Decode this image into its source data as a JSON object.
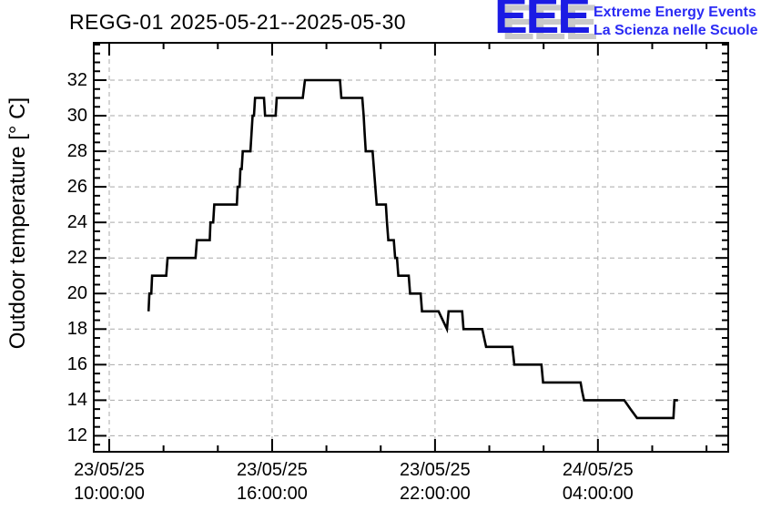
{
  "header": {
    "title": "REGG-01 2025-05-21--2025-05-30",
    "logo": {
      "acronym": "EEE",
      "line1": "Extreme Energy Events",
      "line2": "La Scienza nelle Scuole",
      "blue_color": "#1b1be4",
      "text_color": "#2b2bf4",
      "shadow_color": "#c9c9c9"
    }
  },
  "chart_data": {
    "type": "line",
    "style": "stepped polyline (ROOT TGraph style)",
    "title": "REGG-01 2025-05-21--2025-05-30",
    "xlabel": "",
    "ylabel": "Outdoor temperature [° C]",
    "x_unit": "hours since 2025-05-23 00:00:00",
    "xlim": [
      9.43,
      32.8
    ],
    "ylim": [
      11.1,
      34.1
    ],
    "grid": "dashed gray grid at major ticks",
    "legend": "none",
    "line_color": "#000000",
    "grid_color": "#a9a9a9",
    "frame_color": "#000000",
    "x_major_ticks": [
      {
        "value": 10,
        "date": "23/05/25",
        "time": "10:00:00"
      },
      {
        "value": 16,
        "date": "23/05/25",
        "time": "16:00:00"
      },
      {
        "value": 22,
        "date": "23/05/25",
        "time": "22:00:00"
      },
      {
        "value": 28,
        "date": "24/05/25",
        "time": "04:00:00"
      }
    ],
    "x_minor_tick_values": [
      12,
      14,
      18,
      20,
      24,
      26,
      30,
      32
    ],
    "y_major_ticks": [
      12,
      14,
      16,
      18,
      20,
      22,
      24,
      26,
      28,
      30,
      32
    ],
    "y_minor_step": 0.5,
    "series": [
      {
        "name": "outdoor-temperature",
        "points": [
          [
            11.45,
            19
          ],
          [
            11.48,
            20
          ],
          [
            11.55,
            20
          ],
          [
            11.58,
            21
          ],
          [
            12.1,
            21
          ],
          [
            12.15,
            22
          ],
          [
            13.18,
            22
          ],
          [
            13.23,
            23
          ],
          [
            13.7,
            23
          ],
          [
            13.73,
            24
          ],
          [
            13.83,
            24
          ],
          [
            13.87,
            25
          ],
          [
            14.7,
            25
          ],
          [
            14.73,
            26
          ],
          [
            14.8,
            26
          ],
          [
            14.83,
            27
          ],
          [
            14.88,
            27
          ],
          [
            14.92,
            28
          ],
          [
            15.2,
            28
          ],
          [
            15.24,
            29
          ],
          [
            15.28,
            30
          ],
          [
            15.33,
            30
          ],
          [
            15.37,
            31
          ],
          [
            15.7,
            31
          ],
          [
            15.74,
            30
          ],
          [
            16.13,
            30
          ],
          [
            16.17,
            31
          ],
          [
            17.13,
            31
          ],
          [
            17.17,
            31.5
          ],
          [
            17.21,
            32
          ],
          [
            18.5,
            32
          ],
          [
            18.55,
            31
          ],
          [
            19.32,
            31
          ],
          [
            19.37,
            30
          ],
          [
            19.41,
            29
          ],
          [
            19.45,
            28
          ],
          [
            19.7,
            28
          ],
          [
            19.75,
            27
          ],
          [
            19.8,
            26
          ],
          [
            19.85,
            25
          ],
          [
            20.19,
            25
          ],
          [
            20.23,
            24
          ],
          [
            20.28,
            23
          ],
          [
            20.48,
            23
          ],
          [
            20.53,
            22
          ],
          [
            20.6,
            22
          ],
          [
            20.65,
            21
          ],
          [
            21.03,
            21
          ],
          [
            21.08,
            20
          ],
          [
            21.47,
            20
          ],
          [
            21.52,
            19
          ],
          [
            22.13,
            19
          ],
          [
            22.44,
            18
          ],
          [
            22.5,
            19
          ],
          [
            23.0,
            19
          ],
          [
            23.05,
            18
          ],
          [
            23.74,
            18
          ],
          [
            23.81,
            17.5
          ],
          [
            23.88,
            17
          ],
          [
            24.85,
            17
          ],
          [
            24.92,
            16
          ],
          [
            25.92,
            16
          ],
          [
            25.98,
            15
          ],
          [
            27.36,
            15
          ],
          [
            27.42,
            14.5
          ],
          [
            27.49,
            14
          ],
          [
            28.97,
            14
          ],
          [
            29.2,
            13.5
          ],
          [
            29.44,
            13
          ],
          [
            30.78,
            13
          ],
          [
            30.82,
            14
          ],
          [
            30.95,
            14
          ]
        ]
      }
    ]
  }
}
